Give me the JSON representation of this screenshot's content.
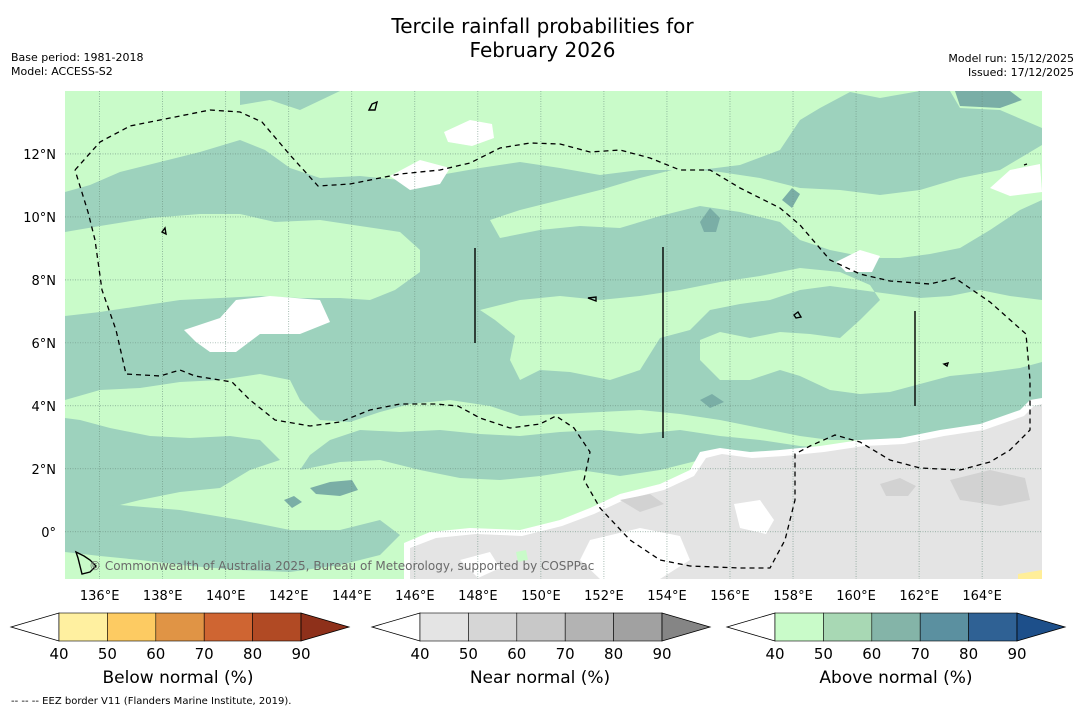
{
  "header": {
    "title_line1": "Tercile rainfall probabilities for",
    "title_line2": "February 2026",
    "base_period": "Base period: 1981-2018",
    "model": "Model: ACCESS-S2",
    "model_run": "Model run: 15/12/2025",
    "issued": "Issued: 17/12/2025"
  },
  "map": {
    "lat_labels": [
      "12°N",
      "10°N",
      "8°N",
      "6°N",
      "4°N",
      "2°N",
      "0°"
    ],
    "lat_values": [
      12,
      10,
      8,
      6,
      4,
      2,
      0
    ],
    "lon_labels": [
      "136°E",
      "138°E",
      "140°E",
      "142°E",
      "144°E",
      "146°E",
      "148°E",
      "150°E",
      "152°E",
      "154°E",
      "156°E",
      "158°E",
      "160°E",
      "162°E",
      "164°E"
    ],
    "lon_values": [
      136,
      138,
      140,
      142,
      144,
      146,
      148,
      150,
      152,
      154,
      156,
      158,
      160,
      162,
      164
    ],
    "lon_range": [
      134.9,
      165.9
    ],
    "lat_range": [
      -1.5,
      14
    ],
    "copyright": "© Commonwealth of Australia 2025, Bureau of Meteorology, supported by COSPPac",
    "colors": {
      "near_light": "#e4e4e4",
      "above_50": "#c9fbc9",
      "above_60": "#9dd2bd",
      "above_70": "#7aaea6",
      "below_40": "#ffee99"
    }
  },
  "colorbars": [
    {
      "label": "Below normal (%)",
      "ticks": [
        "40",
        "50",
        "60",
        "70",
        "80",
        "90"
      ],
      "colors": [
        "#fff0a0",
        "#fdcb62",
        "#e09445",
        "#cf6532",
        "#b14a24",
        "#8e301a"
      ]
    },
    {
      "label": "Near normal (%)",
      "ticks": [
        "40",
        "50",
        "60",
        "70",
        "80",
        "90"
      ],
      "colors": [
        "#e4e4e4",
        "#d6d6d6",
        "#c8c8c8",
        "#b3b3b3",
        "#a1a1a1",
        "#858585"
      ]
    },
    {
      "label": "Above normal (%)",
      "ticks": [
        "40",
        "50",
        "60",
        "70",
        "80",
        "90"
      ],
      "colors": [
        "#c9fbc9",
        "#a8d8b4",
        "#84b4a8",
        "#5b90a0",
        "#2f6194",
        "#1d4f8a"
      ]
    }
  ],
  "footer": "-- -- -- EEZ border V11 (Flanders Marine Institute, 2019)."
}
